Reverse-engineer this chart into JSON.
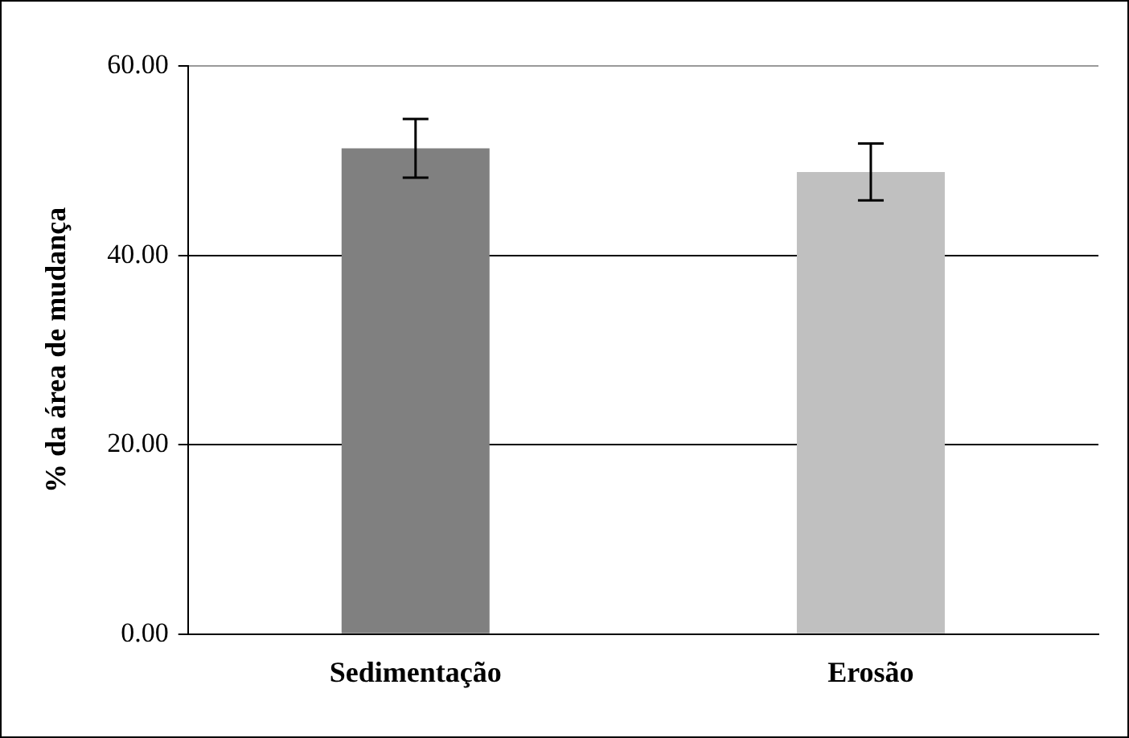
{
  "chart_data": {
    "type": "bar",
    "ylabel": "% da área de mudança",
    "categories": [
      "Sedimentação",
      "Erosão"
    ],
    "values": [
      51.3,
      48.8
    ],
    "colors": [
      "#808080",
      "#c0c0c0"
    ],
    "errors": [
      3.1,
      3.0
    ],
    "ylim": [
      0,
      60
    ],
    "yticks": [
      {
        "value": 0,
        "label": "0.00"
      },
      {
        "value": 20,
        "label": "20.00"
      },
      {
        "value": 40,
        "label": "40.00"
      },
      {
        "value": 60,
        "label": "60.00"
      }
    ],
    "grid": "y",
    "legend": false
  }
}
